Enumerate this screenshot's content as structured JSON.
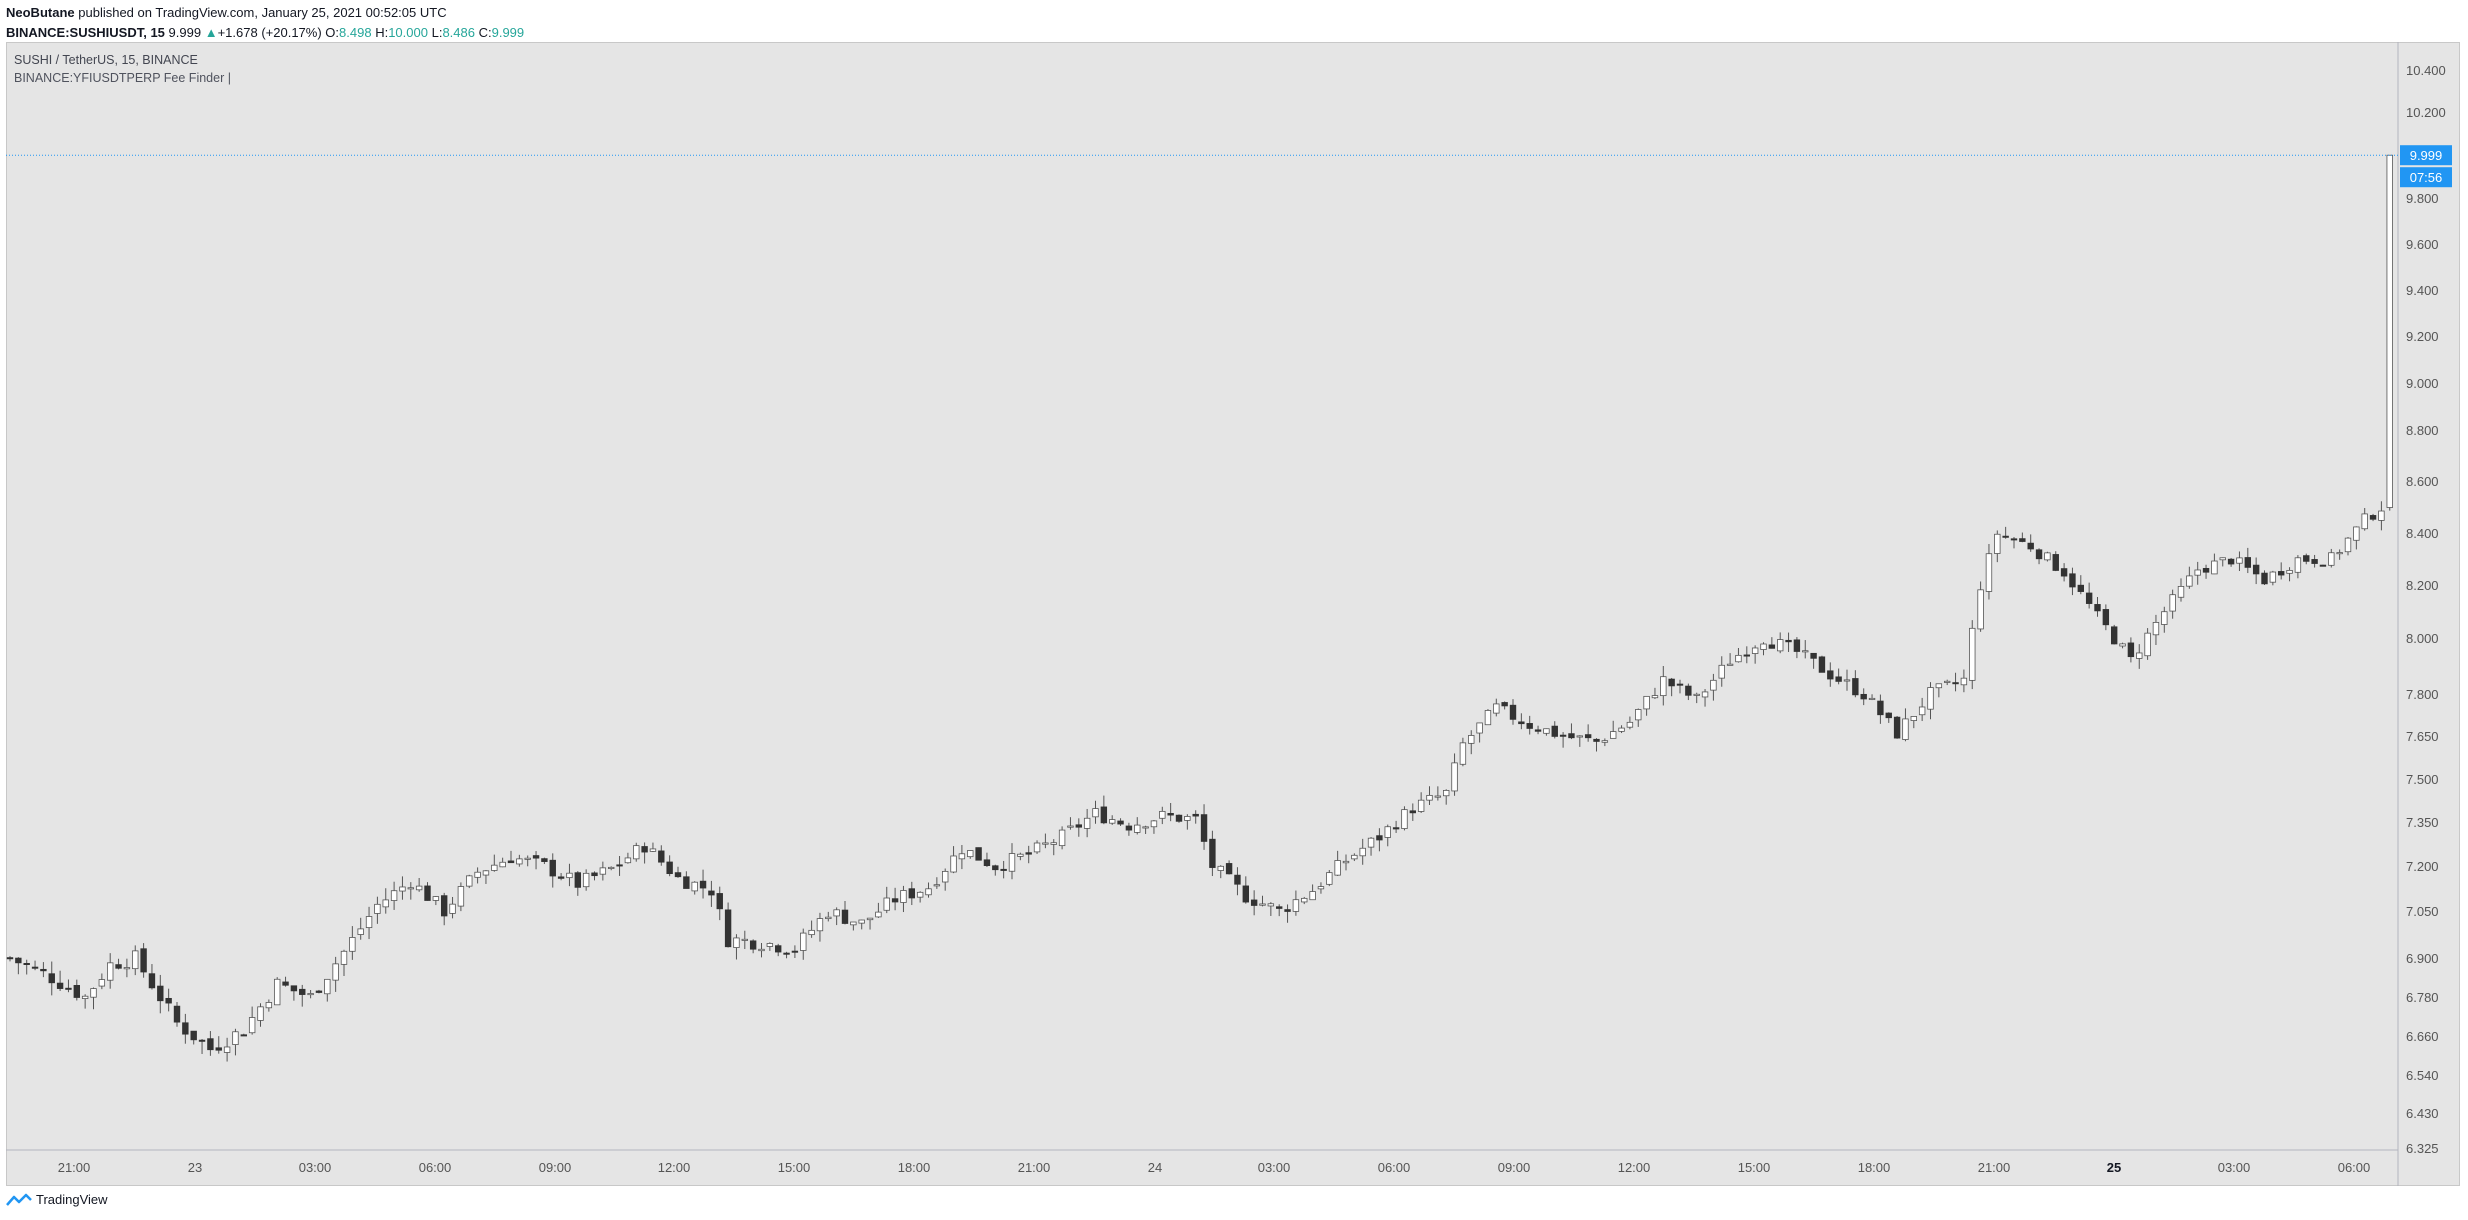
{
  "header": {
    "author": "NeoButane",
    "published_text": "published on TradingView.com, January 25, 2021 00:52:05 UTC",
    "symbol": "BINANCE:SUSHIUSDT, 15",
    "last_price": "9.999",
    "change_arrow": "▲",
    "change": "+1.678 (+20.17%)",
    "o_label": "O:",
    "o_value": "8.498",
    "h_label": "H:",
    "h_value": "10.000",
    "l_label": "L:",
    "l_value": "8.486",
    "c_label": "C:",
    "c_value": "9.999"
  },
  "legend": {
    "series_title": "SUSHI / TetherUS, 15, BINANCE",
    "indicator": "BINANCE:YFIUSDTPERP Fee Finder |"
  },
  "footer": {
    "brand": "TradingView"
  },
  "colors": {
    "background": "#e5e5e5",
    "bull_fill": "#ffffff",
    "bear_fill": "#333333",
    "wick": "#555555",
    "price_line": "#2196f3",
    "price_label_bg": "#2196f3"
  },
  "chart_data": {
    "type": "candlestick",
    "interval": "15",
    "y_ticks": [
      "10.400",
      "10.200",
      "9.800",
      "9.600",
      "9.400",
      "9.200",
      "9.000",
      "8.800",
      "8.600",
      "8.400",
      "8.200",
      "8.000",
      "7.800",
      "7.650",
      "7.500",
      "7.350",
      "7.200",
      "7.050",
      "6.900",
      "6.780",
      "6.660",
      "6.540",
      "6.430",
      "6.325"
    ],
    "x_ticks": [
      "21:00",
      "23",
      "03:00",
      "06:00",
      "09:00",
      "12:00",
      "15:00",
      "18:00",
      "21:00",
      "24",
      "03:00",
      "06:00",
      "09:00",
      "12:00",
      "15:00",
      "18:00",
      "21:00",
      "25",
      "03:00",
      "06:00"
    ],
    "bold_x_ticks": [
      "25"
    ],
    "last_price_label": "9.999",
    "countdown": "07:56",
    "last_price_value": 9.999,
    "anchor_prices": [
      [
        0,
        6.9
      ],
      [
        5,
        6.84
      ],
      [
        9,
        6.78
      ],
      [
        12,
        6.88
      ],
      [
        15,
        6.9
      ],
      [
        20,
        6.7
      ],
      [
        24,
        6.62
      ],
      [
        28,
        6.68
      ],
      [
        32,
        6.82
      ],
      [
        36,
        6.78
      ],
      [
        40,
        6.92
      ],
      [
        44,
        7.07
      ],
      [
        48,
        7.15
      ],
      [
        52,
        7.05
      ],
      [
        56,
        7.18
      ],
      [
        60,
        7.23
      ],
      [
        64,
        7.2
      ],
      [
        68,
        7.14
      ],
      [
        72,
        7.19
      ],
      [
        76,
        7.27
      ],
      [
        80,
        7.16
      ],
      [
        84,
        7.12
      ],
      [
        86,
        6.96
      ],
      [
        90,
        6.95
      ],
      [
        94,
        6.93
      ],
      [
        98,
        7.05
      ],
      [
        102,
        7.01
      ],
      [
        106,
        7.09
      ],
      [
        110,
        7.13
      ],
      [
        114,
        7.26
      ],
      [
        118,
        7.2
      ],
      [
        122,
        7.24
      ],
      [
        126,
        7.3
      ],
      [
        130,
        7.38
      ],
      [
        134,
        7.34
      ],
      [
        138,
        7.37
      ],
      [
        142,
        7.36
      ],
      [
        144,
        7.2
      ],
      [
        148,
        7.1
      ],
      [
        152,
        7.05
      ],
      [
        156,
        7.12
      ],
      [
        160,
        7.22
      ],
      [
        164,
        7.3
      ],
      [
        168,
        7.4
      ],
      [
        172,
        7.45
      ],
      [
        174,
        7.62
      ],
      [
        178,
        7.75
      ],
      [
        182,
        7.69
      ],
      [
        186,
        7.65
      ],
      [
        190,
        7.63
      ],
      [
        194,
        7.7
      ],
      [
        198,
        7.85
      ],
      [
        202,
        7.78
      ],
      [
        206,
        7.92
      ],
      [
        210,
        8.0
      ],
      [
        214,
        7.95
      ],
      [
        218,
        7.87
      ],
      [
        222,
        7.8
      ],
      [
        226,
        7.66
      ],
      [
        230,
        7.8
      ],
      [
        234,
        7.85
      ],
      [
        236,
        8.2
      ],
      [
        238,
        8.4
      ],
      [
        242,
        8.35
      ],
      [
        246,
        8.25
      ],
      [
        250,
        8.08
      ],
      [
        254,
        7.92
      ],
      [
        258,
        8.1
      ],
      [
        262,
        8.26
      ],
      [
        266,
        8.3
      ],
      [
        270,
        8.22
      ],
      [
        274,
        8.3
      ],
      [
        278,
        8.3
      ],
      [
        282,
        8.45
      ],
      [
        284,
        8.5
      ],
      [
        285,
        9.999
      ]
    ]
  }
}
